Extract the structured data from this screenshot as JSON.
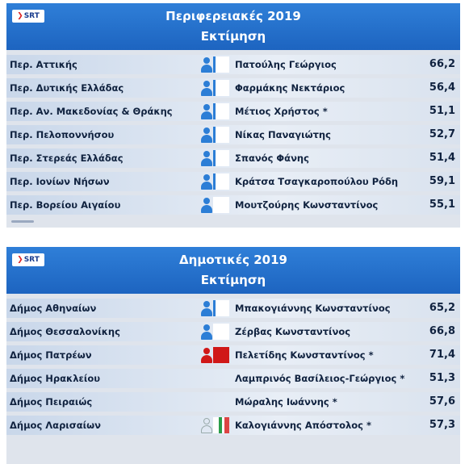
{
  "panels": [
    {
      "logo": "SRT",
      "title": "Περιφερειακές 2019",
      "subtitle": "Εκτίμηση",
      "rows": [
        {
          "region": "Περ. Αττικής",
          "candidate": "Πατούλης Γεώργιος",
          "pct": "66,2",
          "party": "nd"
        },
        {
          "region": "Περ. Δυτικής Ελλάδας",
          "candidate": "Φαρμάκης Νεκτάριος",
          "pct": "56,4",
          "party": "nd"
        },
        {
          "region": "Περ. Αν. Μακεδονίας & Θράκης",
          "candidate": "Μέτιος Χρήστος *",
          "pct": "51,1",
          "party": "nd"
        },
        {
          "region": "Περ. Πελοποννήσου",
          "candidate": "Νίκας Παναγιώτης",
          "pct": "52,7",
          "party": "nd"
        },
        {
          "region": "Περ. Στερεάς Ελλάδας",
          "candidate": "Σπανός Φάνης",
          "pct": "51,4",
          "party": "nd"
        },
        {
          "region": "Περ. Ιονίων Νήσων",
          "candidate": "Κράτσα Τσαγκαροπούλου Ρόδη",
          "pct": "59,1",
          "party": "nd"
        },
        {
          "region": "Περ. Βορείου Αιγαίου",
          "candidate": "Μουτζούρης Κωνσταντίνος",
          "pct": "55,1",
          "party": "ind"
        }
      ]
    },
    {
      "logo": "SRT",
      "title": "Δημοτικές 2019",
      "subtitle": "Εκτίμηση",
      "rows": [
        {
          "region": "Δήμος Αθηναίων",
          "candidate": "Μπακογιάννης Κωνσταντίνος",
          "pct": "65,2",
          "party": "nd"
        },
        {
          "region": "Δήμος Θεσσαλονίκης",
          "candidate": "Ζέρβας Κωνσταντίνος",
          "pct": "66,8",
          "party": "ind"
        },
        {
          "region": "Δήμος Πατρέων",
          "candidate": "Πελετίδης Κωνσταντίνος *",
          "pct": "71,4",
          "party": "kke"
        },
        {
          "region": "Δήμος Ηρακλείου",
          "candidate": "Λαμπρινός Βασίλειος-Γεώργιος *",
          "pct": "51,3",
          "party": "none"
        },
        {
          "region": "Δήμος Πειραιώς",
          "candidate": "Μώραλης Ιωάννης *",
          "pct": "57,6",
          "party": "none"
        },
        {
          "region": "Δήμος Λαρισαίων",
          "candidate": "Καλογιάννης Απόστολος *",
          "pct": "57,3",
          "party": "gray"
        }
      ]
    }
  ]
}
